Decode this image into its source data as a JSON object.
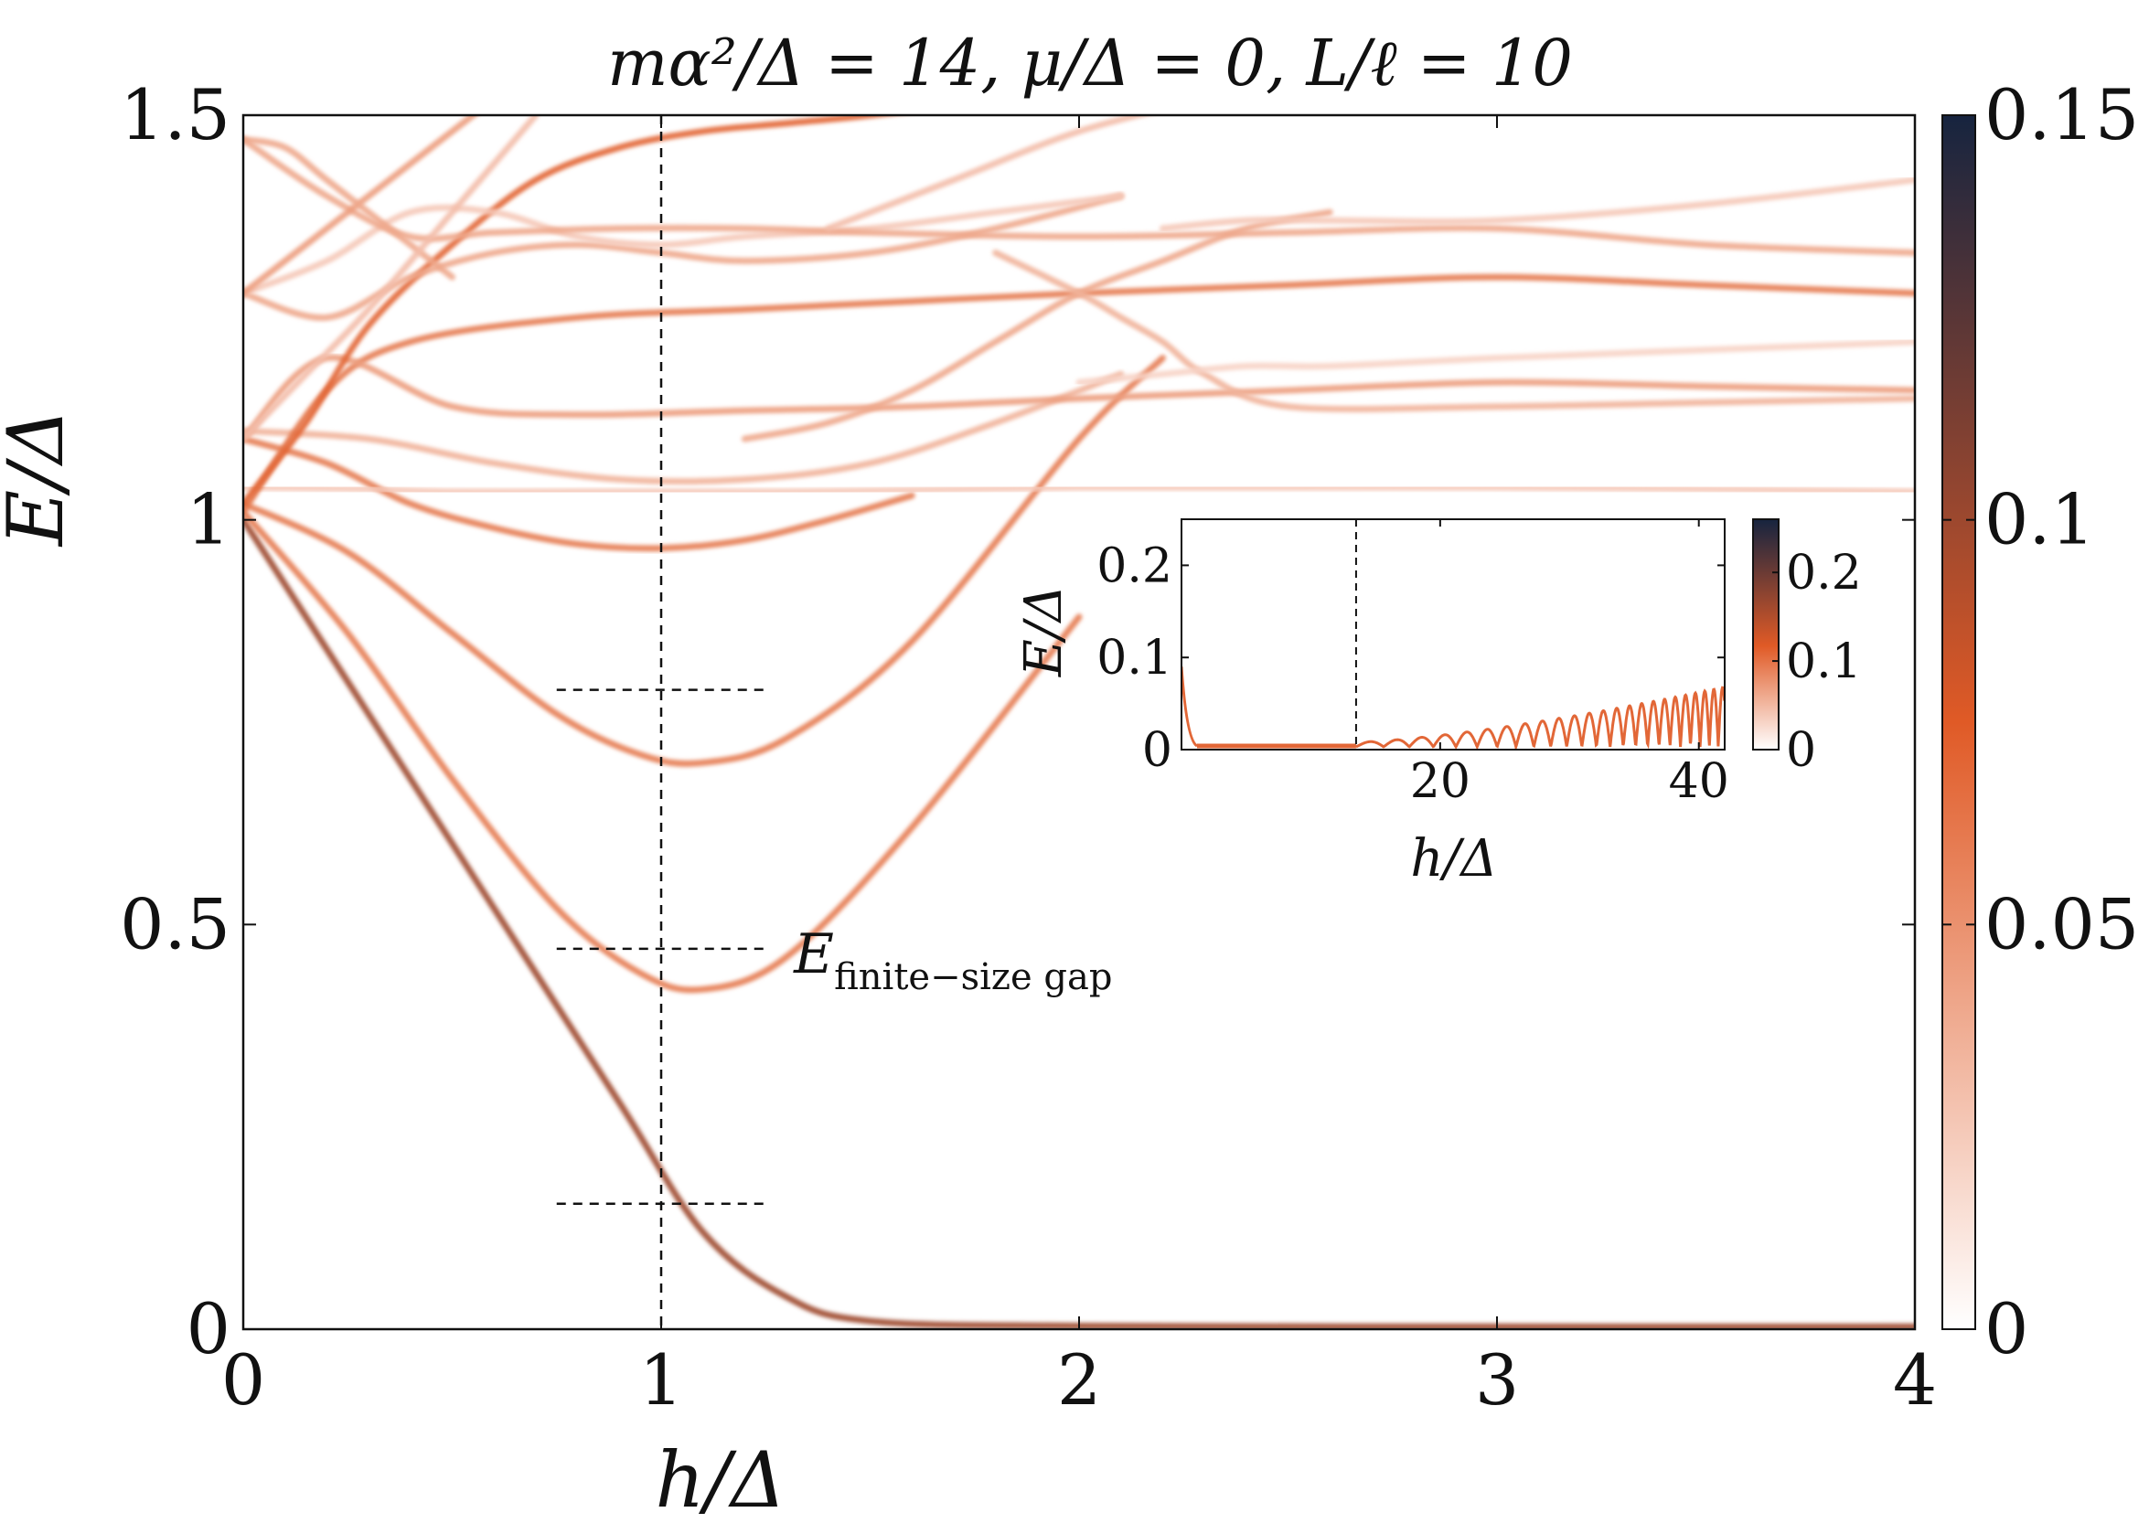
{
  "chart_data": [
    {
      "type": "heatmap",
      "title": "mα²/Δ = 14, μ/Δ = 0, L/ℓ = 10",
      "xlabel": "h/Δ",
      "ylabel": "E/Δ",
      "xlim": [
        0,
        4
      ],
      "ylim": [
        0,
        1.5
      ],
      "x_ticks": [
        "0",
        "1",
        "2",
        "3",
        "4"
      ],
      "y_ticks": [
        "0",
        "0.5",
        "1",
        "1.5"
      ],
      "colorbar": {
        "range": [
          0,
          0.15
        ],
        "ticks": [
          "0",
          "0.05",
          "0.1",
          "0.15"
        ],
        "colors": [
          "#ffffff",
          "#e05a26",
          "#16243f"
        ]
      },
      "vline_x": 1.0,
      "hmarks": [
        {
          "y": 0.79,
          "x": [
            0.75,
            1.25
          ]
        },
        {
          "y": 0.47,
          "x": [
            0.75,
            1.25
          ]
        },
        {
          "y": 0.155,
          "x": [
            0.75,
            1.25
          ]
        }
      ],
      "annotation": {
        "text": "E",
        "sub": "finite−size gap",
        "x": 1.3,
        "y": 0.47
      },
      "bands": [
        {
          "x": [
            0,
            0.3,
            0.6,
            0.9,
            1.1,
            1.3,
            1.5,
            2.0,
            3.0,
            4.0
          ],
          "y": [
            1.0,
            0.76,
            0.52,
            0.28,
            0.12,
            0.04,
            0.01,
            0.004,
            0.003,
            0.003
          ],
          "intensity": 0.1
        },
        {
          "x": [
            0,
            0.25,
            0.5,
            0.75,
            0.95,
            1.1,
            1.3,
            1.6,
            2.0
          ],
          "y": [
            1.01,
            0.86,
            0.68,
            0.52,
            0.44,
            0.42,
            0.46,
            0.62,
            0.88
          ],
          "intensity": 0.06
        },
        {
          "x": [
            0,
            0.25,
            0.5,
            0.75,
            0.95,
            1.1,
            1.3,
            1.6,
            2.0,
            2.2
          ],
          "y": [
            1.02,
            0.96,
            0.86,
            0.76,
            0.71,
            0.7,
            0.73,
            0.85,
            1.1,
            1.2
          ],
          "intensity": 0.06
        },
        {
          "x": [
            0,
            0.2,
            0.4,
            0.6,
            0.8,
            1.0,
            1.2,
            1.4,
            1.6
          ],
          "y": [
            1.1,
            1.07,
            1.02,
            0.99,
            0.97,
            0.965,
            0.975,
            1.0,
            1.03
          ],
          "intensity": 0.06
        },
        {
          "x": [
            0,
            0.3,
            0.6,
            0.9,
            1.2,
            1.5,
            1.8,
            2.1
          ],
          "y": [
            1.11,
            1.1,
            1.07,
            1.05,
            1.05,
            1.07,
            1.12,
            1.18
          ],
          "intensity": 0.035
        },
        {
          "x": [
            0,
            0.3,
            0.5,
            0.8,
            1.0,
            1.3,
            1.6,
            2.0,
            2.5,
            3.0,
            3.5,
            4.0
          ],
          "y": [
            1.04,
            1.038,
            1.035,
            1.035,
            1.035,
            1.035,
            1.037,
            1.04,
            1.04,
            1.04,
            1.038,
            1.035
          ],
          "intensity": 0.025
        },
        {
          "x": [
            0,
            0.2,
            0.4,
            0.8,
            1.2,
            1.6,
            2.0,
            2.5,
            3.0,
            3.5,
            4.0
          ],
          "y": [
            1.01,
            1.16,
            1.22,
            1.25,
            1.26,
            1.27,
            1.28,
            1.29,
            1.3,
            1.29,
            1.28
          ],
          "intensity": 0.06
        },
        {
          "x": [
            0,
            0.2,
            0.5,
            0.8,
            1.2,
            1.6,
            2.0,
            2.5,
            3.0,
            3.5,
            4.0
          ],
          "y": [
            1.1,
            1.2,
            1.14,
            1.13,
            1.135,
            1.14,
            1.15,
            1.16,
            1.17,
            1.165,
            1.16
          ],
          "intensity": 0.045
        },
        {
          "x": [
            0,
            0.15,
            0.3,
            0.5,
            0.7,
            0.9,
            1.1,
            1.3,
            1.5,
            1.8
          ],
          "y": [
            1.02,
            1.12,
            1.24,
            1.34,
            1.42,
            1.46,
            1.48,
            1.49,
            1.5,
            1.52
          ],
          "intensity": 0.07
        },
        {
          "x": [
            0,
            0.2,
            0.4,
            0.6,
            0.8,
            1.0,
            1.2,
            1.5,
            1.8,
            2.1
          ],
          "y": [
            1.28,
            1.25,
            1.3,
            1.33,
            1.34,
            1.33,
            1.32,
            1.33,
            1.36,
            1.4
          ],
          "intensity": 0.04
        },
        {
          "x": [
            0,
            0.2,
            0.4,
            0.6,
            0.8,
            1.0,
            1.2,
            1.5,
            1.8,
            2.1
          ],
          "y": [
            1.28,
            1.32,
            1.38,
            1.38,
            1.35,
            1.34,
            1.35,
            1.36,
            1.38,
            1.4
          ],
          "intensity": 0.025
        },
        {
          "x": [
            0,
            0.2,
            0.4,
            0.6,
            0.9,
            1.2,
            1.5,
            2.0,
            2.5,
            3.0,
            3.5,
            4.0
          ],
          "y": [
            1.47,
            1.4,
            1.35,
            1.355,
            1.36,
            1.36,
            1.355,
            1.35,
            1.355,
            1.36,
            1.34,
            1.33
          ],
          "intensity": 0.04
        },
        {
          "x": [
            0,
            0.15,
            0.3,
            0.45,
            0.6
          ],
          "y": [
            1.28,
            1.34,
            1.4,
            1.46,
            1.52
          ],
          "intensity": 0.045
        },
        {
          "x": [
            0,
            0.1,
            0.2,
            0.35,
            0.5
          ],
          "y": [
            1.47,
            1.46,
            1.42,
            1.36,
            1.3
          ],
          "intensity": 0.04
        },
        {
          "x": [
            0,
            0.15,
            0.3,
            0.5,
            0.7
          ],
          "y": [
            1.1,
            1.18,
            1.26,
            1.38,
            1.5
          ],
          "intensity": 0.03
        },
        {
          "x": [
            1.2,
            1.4,
            1.6,
            1.8,
            2.0,
            2.2,
            2.4,
            2.6
          ],
          "y": [
            1.1,
            1.12,
            1.16,
            1.22,
            1.28,
            1.32,
            1.36,
            1.38
          ],
          "intensity": 0.04
        },
        {
          "x": [
            1.8,
            2.0,
            2.1,
            2.2,
            2.3,
            2.5,
            3.0,
            3.5,
            4.0
          ],
          "y": [
            1.33,
            1.28,
            1.25,
            1.22,
            1.18,
            1.14,
            1.14,
            1.145,
            1.15
          ],
          "intensity": 0.035
        },
        {
          "x": [
            2.2,
            2.4,
            2.6,
            3.0,
            3.5,
            4.0
          ],
          "y": [
            1.36,
            1.37,
            1.37,
            1.37,
            1.39,
            1.42
          ],
          "intensity": 0.025
        },
        {
          "x": [
            2.0,
            2.2,
            2.4,
            2.6,
            3.0,
            3.5,
            4.0
          ],
          "y": [
            1.17,
            1.18,
            1.19,
            1.19,
            1.2,
            1.21,
            1.22
          ],
          "intensity": 0.02
        },
        {
          "x": [
            1.4,
            1.7,
            2.0,
            2.3
          ],
          "y": [
            1.36,
            1.42,
            1.48,
            1.52
          ],
          "intensity": 0.03
        }
      ]
    },
    {
      "type": "line",
      "xlabel": "h/Δ",
      "ylabel": "E/Δ",
      "xlim": [
        0,
        42
      ],
      "ylim": [
        0,
        0.25
      ],
      "x_ticks": [
        "20",
        "40"
      ],
      "y_ticks": [
        "0",
        "0.1",
        "0.2"
      ],
      "colorbar": {
        "range": [
          0,
          0.26
        ],
        "ticks": [
          "0",
          "0.1",
          "0.2"
        ],
        "colors": [
          "#ffffff",
          "#e05a26",
          "#16243f"
        ]
      },
      "vline_x": 13.5,
      "oscillation": {
        "x_start": 13.5,
        "x_end": 42,
        "amp_start": 0.005,
        "amp_end": 0.065,
        "period_start": 2.2,
        "period_end": 1.2
      }
    }
  ]
}
